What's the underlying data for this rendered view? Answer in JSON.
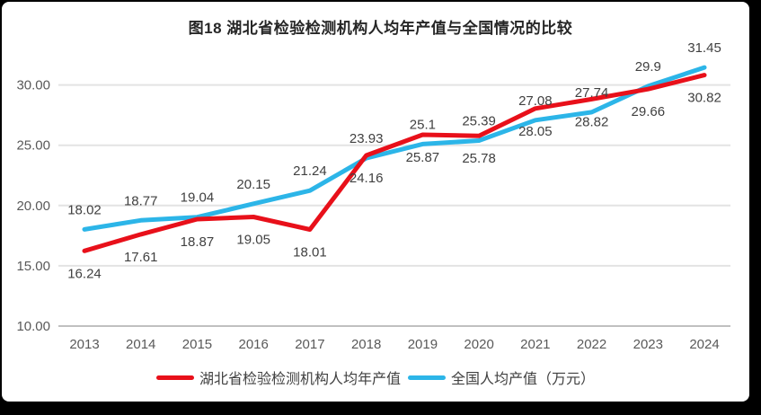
{
  "title": "图18  湖北省检验检测机构人均年产值与全国情况的比较",
  "colors": {
    "hubei_red": "#e8101a",
    "national_blue": "#2cb5e8",
    "gridline": "#e3e3e3",
    "axis_line": "#c0c0c0",
    "tick_label": "#595959",
    "data_label": "#404040",
    "title_text": "#262626",
    "frame": "#000000",
    "panel": "#ffffff"
  },
  "chart_data": {
    "type": "line",
    "title": "图18  湖北省检验检测机构人均年产值与全国情况的比较",
    "categories": [
      "2013",
      "2014",
      "2015",
      "2016",
      "2017",
      "2018",
      "2019",
      "2020",
      "2021",
      "2022",
      "2023",
      "2024"
    ],
    "series": [
      {
        "name": "湖北省检验检测机构人均年产值",
        "color": "#e8101a",
        "label_position": "below",
        "values": [
          16.24,
          17.61,
          18.87,
          19.05,
          18.01,
          24.16,
          25.87,
          25.78,
          28.05,
          28.82,
          29.66,
          30.82
        ]
      },
      {
        "name": "全国人均产值（万元）",
        "color": "#2cb5e8",
        "label_position": "above",
        "values": [
          18.02,
          18.77,
          19.04,
          20.15,
          21.24,
          23.93,
          25.1,
          25.39,
          27.08,
          27.74,
          29.9,
          31.45
        ]
      }
    ],
    "xlabel": "",
    "ylabel": "",
    "ylim": [
      10,
      30
    ],
    "yticks": [
      "10.00",
      "15.00",
      "20.00",
      "25.00",
      "30.00"
    ],
    "grid": true,
    "legend_position": "bottom",
    "data_labels": true
  }
}
